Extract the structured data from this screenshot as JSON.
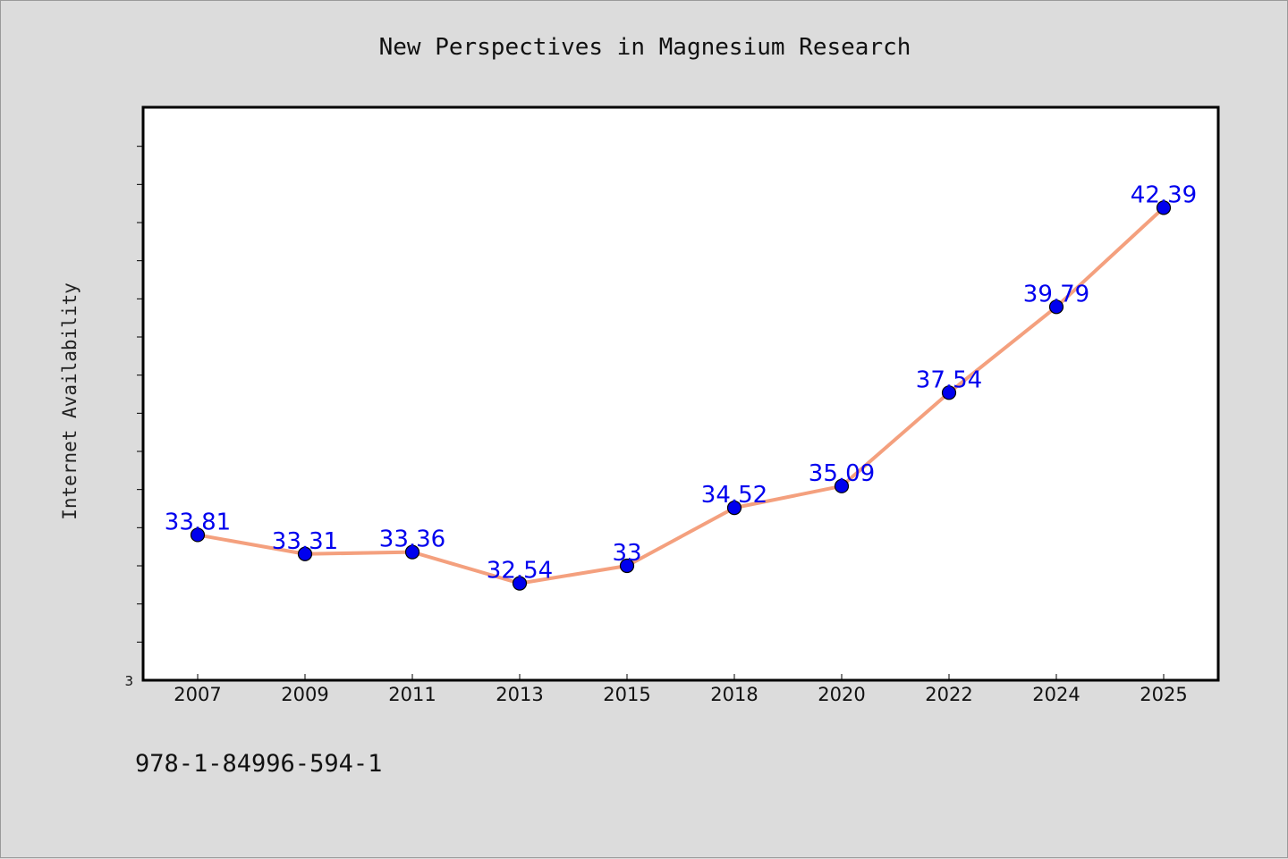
{
  "colors": {
    "background": "#dcdcdc",
    "plot_area": "#ffffff",
    "line": "#f4a07e",
    "marker": "#0000ee",
    "data_label": "#0000ee"
  },
  "footnote": "978-1-84996-594-1",
  "chart_data": {
    "type": "line",
    "title": "New Perspectives in Magnesium Research",
    "xlabel": "",
    "ylabel": "Internet Availability",
    "categories": [
      "2007",
      "2009",
      "2011",
      "2013",
      "2015",
      "2018",
      "2020",
      "2022",
      "2024",
      "2025"
    ],
    "series": [
      {
        "values": [
          33.81,
          33.31,
          33.36,
          32.54,
          33,
          34.52,
          35.09,
          37.54,
          39.79,
          42.39
        ],
        "labels": [
          "33.81",
          "33.31",
          "33.36",
          "32.54",
          "33",
          "34.52",
          "35.09",
          "37.54",
          "39.79",
          "42.39"
        ]
      }
    ],
    "ylim": [
      30,
      45
    ],
    "y_tick_labels": [
      "3"
    ],
    "grid": false,
    "legend": "none"
  }
}
